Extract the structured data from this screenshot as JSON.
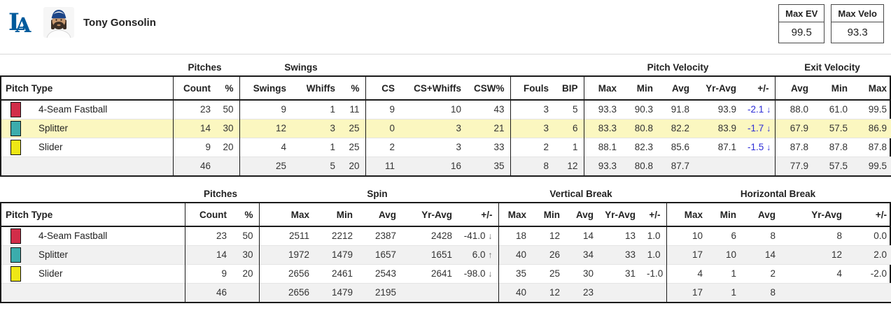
{
  "header": {
    "team_logo": "LA",
    "player_name": "Tony Gonsolin",
    "stat_boxes": [
      {
        "label": "Max EV",
        "value": "99.5"
      },
      {
        "label": "Max Velo",
        "value": "93.3"
      }
    ]
  },
  "colors": {
    "dodger_blue": "#005A9C",
    "highlight_yellow": "#FBF7C0",
    "stripe_gray": "#F1F1F1",
    "plus_minus_blue": "#2D2DD6",
    "pitch_4seam": "#D22D49",
    "pitch_splitter": "#3BACAC",
    "pitch_slider": "#EEE716"
  },
  "table1": {
    "groups": [
      "",
      "Pitches",
      "Swings",
      "",
      "",
      "Pitch Velocity",
      "Exit Velocity"
    ],
    "pitch_type_header": "Pitch Type",
    "column_headers": [
      "Count",
      "%",
      "Swings",
      "Whiffs",
      "%",
      "CS",
      "CS+Whiffs",
      "CSW%",
      "Fouls",
      "BIP",
      "Max",
      "Min",
      "Avg",
      "Yr-Avg",
      "+/-",
      "Avg",
      "Min",
      "Max"
    ],
    "rows": [
      {
        "pitch": "4-Seam Fastball",
        "color_key": "pitch_4seam",
        "highlighted": false,
        "cells": [
          "23",
          "50",
          "9",
          "1",
          "11",
          "9",
          "10",
          "43",
          "3",
          "5",
          "93.3",
          "90.3",
          "91.8",
          "93.9",
          "-2.1 ↓",
          "88.0",
          "61.0",
          "99.5"
        ]
      },
      {
        "pitch": "Splitter",
        "color_key": "pitch_splitter",
        "highlighted": true,
        "cells": [
          "14",
          "30",
          "12",
          "3",
          "25",
          "0",
          "3",
          "21",
          "3",
          "6",
          "83.3",
          "80.8",
          "82.2",
          "83.9",
          "-1.7 ↓",
          "67.9",
          "57.5",
          "86.9"
        ]
      },
      {
        "pitch": "Slider",
        "color_key": "pitch_slider",
        "highlighted": false,
        "cells": [
          "9",
          "20",
          "4",
          "1",
          "25",
          "2",
          "3",
          "33",
          "2",
          "1",
          "88.1",
          "82.3",
          "85.6",
          "87.1",
          "-1.5 ↓",
          "87.8",
          "87.8",
          "87.8"
        ]
      }
    ],
    "totals": [
      "46",
      "",
      "25",
      "5",
      "20",
      "11",
      "16",
      "35",
      "8",
      "12",
      "93.3",
      "80.8",
      "87.7",
      "",
      "",
      "77.9",
      "57.5",
      "99.5"
    ]
  },
  "table2": {
    "groups": [
      "",
      "Pitches",
      "Spin",
      "Vertical Break",
      "Horizontal Break"
    ],
    "pitch_type_header": "Pitch Type",
    "column_headers": [
      "Count",
      "%",
      "Max",
      "Min",
      "Avg",
      "Yr-Avg",
      "+/-",
      "Max",
      "Min",
      "Avg",
      "Yr-Avg",
      "+/-",
      "Max",
      "Min",
      "Avg",
      "Yr-Avg",
      "+/-"
    ],
    "rows": [
      {
        "pitch": "4-Seam Fastball",
        "color_key": "pitch_4seam",
        "highlighted": false,
        "cells": [
          "23",
          "50",
          "2511",
          "2212",
          "2387",
          "2428",
          "-41.0 ↓",
          "18",
          "12",
          "14",
          "13",
          "1.0",
          "10",
          "6",
          "8",
          "8",
          "0.0"
        ]
      },
      {
        "pitch": "Splitter",
        "color_key": "pitch_splitter",
        "highlighted": false,
        "cells": [
          "14",
          "30",
          "1972",
          "1479",
          "1657",
          "1651",
          "6.0 ↑",
          "40",
          "26",
          "34",
          "33",
          "1.0",
          "17",
          "10",
          "14",
          "12",
          "2.0"
        ]
      },
      {
        "pitch": "Slider",
        "color_key": "pitch_slider",
        "highlighted": false,
        "cells": [
          "9",
          "20",
          "2656",
          "2461",
          "2543",
          "2641",
          "-98.0 ↓",
          "35",
          "25",
          "30",
          "31",
          "-1.0",
          "4",
          "1",
          "2",
          "4",
          "-2.0"
        ]
      }
    ],
    "totals": [
      "46",
      "",
      "2656",
      "1479",
      "2195",
      "",
      "",
      "40",
      "12",
      "23",
      "",
      "",
      "17",
      "1",
      "8",
      "",
      ""
    ]
  }
}
